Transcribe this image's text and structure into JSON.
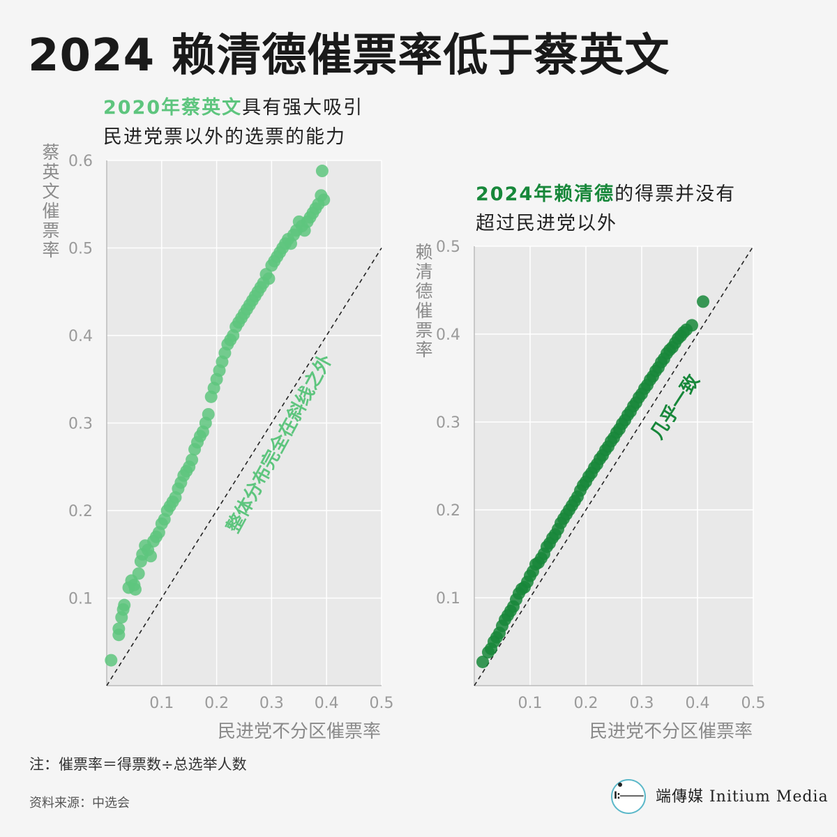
{
  "title": "2024 赖清德催票率低于蔡英文",
  "left_panel": {
    "subtitle_highlight": "2020年蔡英文",
    "subtitle_rest": "具有强大吸引",
    "subtitle_line2": "民进党票以外的选票的能力",
    "ylabel": "蔡英文催票率",
    "xlabel": "民进党不分区催票率",
    "annotation": "整体分布完全在斜线之外"
  },
  "right_panel": {
    "subtitle_highlight": "2024年赖清德",
    "subtitle_rest": "的得票并没有",
    "subtitle_line2": "超过民进党以外",
    "ylabel": "赖清德催票率",
    "xlabel": "民进党不分区催票率",
    "annotation": "几乎一致"
  },
  "note": "注：催票率＝得票数÷总选举人数",
  "source": "资料来源：中选会",
  "brand": {
    "mark": "I:⸻",
    "name": "端傳媒 Initium Media"
  },
  "colors": {
    "left_points": "#5ec57e",
    "right_points": "#17873a",
    "plot_bg": "#e9e9e9",
    "grid": "#ffffff",
    "tick_text": "#9a9a9a"
  },
  "chart_data": [
    {
      "type": "scatter",
      "title": "2020年蔡英文具有强大吸引民进党票以外的选票的能力",
      "xlabel": "民进党不分区催票率",
      "ylabel": "蔡英文催票率",
      "xlim": [
        0,
        0.5
      ],
      "ylim": [
        0,
        0.6
      ],
      "xticks": [
        0.1,
        0.2,
        0.3,
        0.4,
        0.5
      ],
      "yticks": [
        0.1,
        0.2,
        0.3,
        0.4,
        0.5,
        0.6
      ],
      "reference_line": "y = x",
      "point_color": "#5ec57e",
      "x": [
        0.008,
        0.022,
        0.022,
        0.027,
        0.03,
        0.032,
        0.04,
        0.045,
        0.05,
        0.052,
        0.058,
        0.062,
        0.065,
        0.07,
        0.075,
        0.08,
        0.085,
        0.09,
        0.095,
        0.1,
        0.105,
        0.11,
        0.115,
        0.12,
        0.125,
        0.13,
        0.135,
        0.14,
        0.145,
        0.15,
        0.155,
        0.16,
        0.165,
        0.17,
        0.175,
        0.18,
        0.185,
        0.19,
        0.195,
        0.2,
        0.205,
        0.21,
        0.215,
        0.22,
        0.225,
        0.23,
        0.235,
        0.24,
        0.245,
        0.25,
        0.255,
        0.26,
        0.265,
        0.27,
        0.275,
        0.28,
        0.285,
        0.29,
        0.295,
        0.3,
        0.305,
        0.31,
        0.315,
        0.32,
        0.325,
        0.33,
        0.335,
        0.34,
        0.345,
        0.35,
        0.355,
        0.36,
        0.365,
        0.37,
        0.375,
        0.38,
        0.385,
        0.39,
        0.395,
        0.392
      ],
      "y": [
        0.029,
        0.058,
        0.065,
        0.078,
        0.087,
        0.092,
        0.112,
        0.12,
        0.115,
        0.11,
        0.128,
        0.142,
        0.15,
        0.16,
        0.155,
        0.148,
        0.165,
        0.17,
        0.175,
        0.185,
        0.19,
        0.2,
        0.205,
        0.21,
        0.215,
        0.225,
        0.232,
        0.24,
        0.245,
        0.25,
        0.258,
        0.27,
        0.278,
        0.285,
        0.29,
        0.3,
        0.31,
        0.33,
        0.34,
        0.35,
        0.36,
        0.37,
        0.38,
        0.39,
        0.395,
        0.4,
        0.41,
        0.415,
        0.42,
        0.425,
        0.43,
        0.435,
        0.44,
        0.445,
        0.45,
        0.455,
        0.46,
        0.47,
        0.465,
        0.48,
        0.485,
        0.49,
        0.495,
        0.5,
        0.505,
        0.51,
        0.505,
        0.515,
        0.52,
        0.53,
        0.525,
        0.52,
        0.53,
        0.535,
        0.54,
        0.545,
        0.55,
        0.56,
        0.555,
        0.588
      ]
    },
    {
      "type": "scatter",
      "title": "2024年赖清德的得票并没有超过民进党以外",
      "xlabel": "民进党不分区催票率",
      "ylabel": "赖清德催票率",
      "xlim": [
        0,
        0.5
      ],
      "ylim": [
        0,
        0.5
      ],
      "xticks": [
        0.1,
        0.2,
        0.3,
        0.4,
        0.5
      ],
      "yticks": [
        0.1,
        0.2,
        0.3,
        0.4,
        0.5
      ],
      "reference_line": "y = x",
      "point_color": "#17873a",
      "x": [
        0.015,
        0.025,
        0.03,
        0.035,
        0.04,
        0.045,
        0.05,
        0.055,
        0.06,
        0.065,
        0.07,
        0.075,
        0.08,
        0.085,
        0.09,
        0.095,
        0.1,
        0.105,
        0.11,
        0.115,
        0.12,
        0.125,
        0.13,
        0.135,
        0.14,
        0.145,
        0.15,
        0.155,
        0.16,
        0.165,
        0.17,
        0.175,
        0.18,
        0.185,
        0.19,
        0.195,
        0.2,
        0.205,
        0.21,
        0.215,
        0.22,
        0.225,
        0.23,
        0.235,
        0.24,
        0.245,
        0.25,
        0.255,
        0.26,
        0.265,
        0.27,
        0.275,
        0.28,
        0.285,
        0.29,
        0.295,
        0.3,
        0.305,
        0.31,
        0.315,
        0.32,
        0.325,
        0.33,
        0.335,
        0.34,
        0.345,
        0.35,
        0.355,
        0.36,
        0.365,
        0.37,
        0.375,
        0.38,
        0.39,
        0.41
      ],
      "y": [
        0.027,
        0.038,
        0.042,
        0.05,
        0.055,
        0.06,
        0.068,
        0.075,
        0.08,
        0.085,
        0.09,
        0.098,
        0.105,
        0.11,
        0.112,
        0.118,
        0.125,
        0.13,
        0.138,
        0.14,
        0.145,
        0.15,
        0.158,
        0.162,
        0.168,
        0.172,
        0.178,
        0.185,
        0.19,
        0.195,
        0.2,
        0.205,
        0.21,
        0.215,
        0.222,
        0.228,
        0.232,
        0.238,
        0.242,
        0.248,
        0.252,
        0.258,
        0.262,
        0.268,
        0.272,
        0.278,
        0.282,
        0.288,
        0.292,
        0.298,
        0.302,
        0.308,
        0.312,
        0.318,
        0.322,
        0.328,
        0.332,
        0.338,
        0.342,
        0.348,
        0.352,
        0.358,
        0.362,
        0.368,
        0.372,
        0.378,
        0.382,
        0.385,
        0.39,
        0.395,
        0.398,
        0.402,
        0.405,
        0.41,
        0.437
      ]
    }
  ]
}
